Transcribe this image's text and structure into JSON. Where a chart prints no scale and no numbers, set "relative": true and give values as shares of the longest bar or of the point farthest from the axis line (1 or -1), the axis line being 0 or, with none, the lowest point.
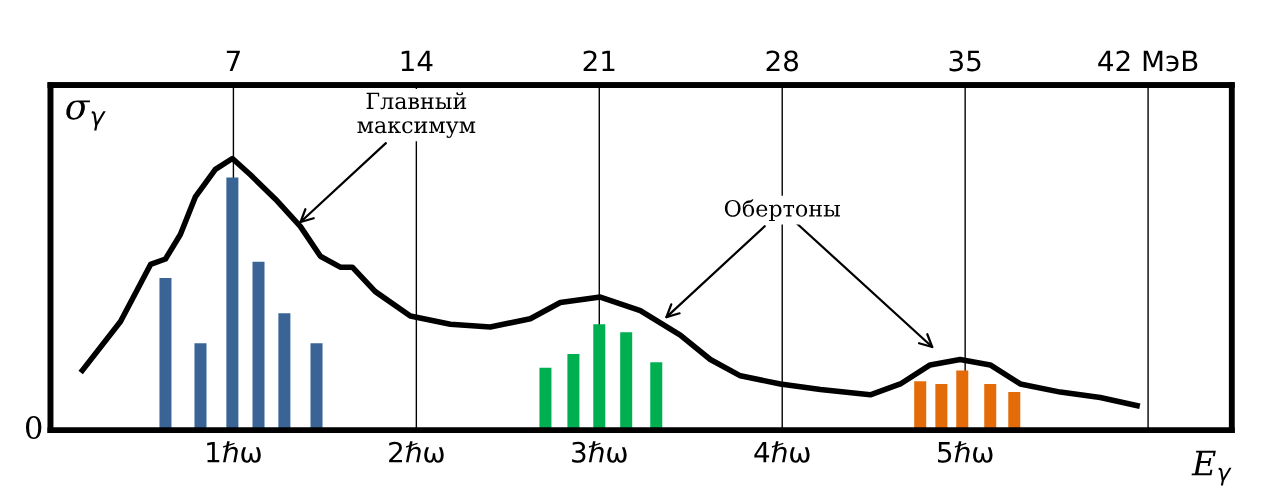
{
  "chart_data": {
    "type": "bar",
    "relative": true,
    "xlabel": "E$_{γ}$",
    "ylabel": "σ$_{γ}$",
    "xlim": [
      0,
      45.2
    ],
    "xticks": [
      7,
      14,
      21,
      28,
      35,
      {
        "value": 42,
        "label": "42 МэВ"
      }
    ],
    "x2lim": [
      0,
      6.457
    ],
    "x2ticks": [
      {
        "value": 1,
        "label": "1ℏω"
      },
      {
        "value": 2,
        "label": "2ℏω"
      },
      {
        "value": 3,
        "label": "3ℏω"
      },
      {
        "value": 4,
        "label": "4ℏω"
      },
      {
        "value": 5,
        "label": "5ℏω"
      }
    ],
    "grid": "x",
    "series": [
      {
        "type": "line",
        "color": "#000000",
        "x": [
          1.22,
          2.68,
          3.83,
          4.4,
          4.97,
          5.55,
          6.31,
          6.96,
          7.65,
          8.61,
          9.56,
          10.33,
          11.09,
          11.55,
          12.43,
          13.77,
          15.3,
          16.83,
          18.36,
          19.51,
          21.04,
          22.57,
          24.1,
          25.25,
          26.4,
          27.93,
          29.46,
          31.37,
          32.52,
          33.66,
          34.81,
          35.96,
          37.11,
          38.64,
          40.17,
          41.58
        ],
        "values": [
          0.22,
          0.4,
          0.61,
          0.63,
          0.72,
          0.86,
          0.96,
          1.0,
          0.94,
          0.85,
          0.75,
          0.64,
          0.6,
          0.6,
          0.51,
          0.42,
          0.39,
          0.38,
          0.41,
          0.47,
          0.49,
          0.44,
          0.35,
          0.26,
          0.2,
          0.17,
          0.15,
          0.13,
          0.17,
          0.24,
          0.26,
          0.24,
          0.17,
          0.14,
          0.12,
          0.09
        ]
      },
      {
        "color": "#3b6496",
        "x": [
          4.4,
          5.74,
          6.96,
          7.96,
          8.95,
          10.18
        ],
        "values": [
          0.56,
          0.32,
          0.93,
          0.62,
          0.43,
          0.32
        ]
      },
      {
        "color": "#00b050",
        "x": [
          18.94,
          20.01,
          21.0,
          22.03,
          23.18
        ],
        "values": [
          0.23,
          0.28,
          0.39,
          0.36,
          0.25
        ]
      },
      {
        "color": "#e36c09",
        "x": [
          33.28,
          34.09,
          34.89,
          35.96,
          36.88
        ],
        "values": [
          0.18,
          0.17,
          0.22,
          0.17,
          0.14
        ]
      }
    ],
    "annotations": [
      "0",
      {
        "text": "Главный\nмаксимум",
        "x": 9.5,
        "y": 0.76
      },
      {
        "text": "Обертоны",
        "x": 23.5,
        "y": 0.41
      }
    ]
  }
}
